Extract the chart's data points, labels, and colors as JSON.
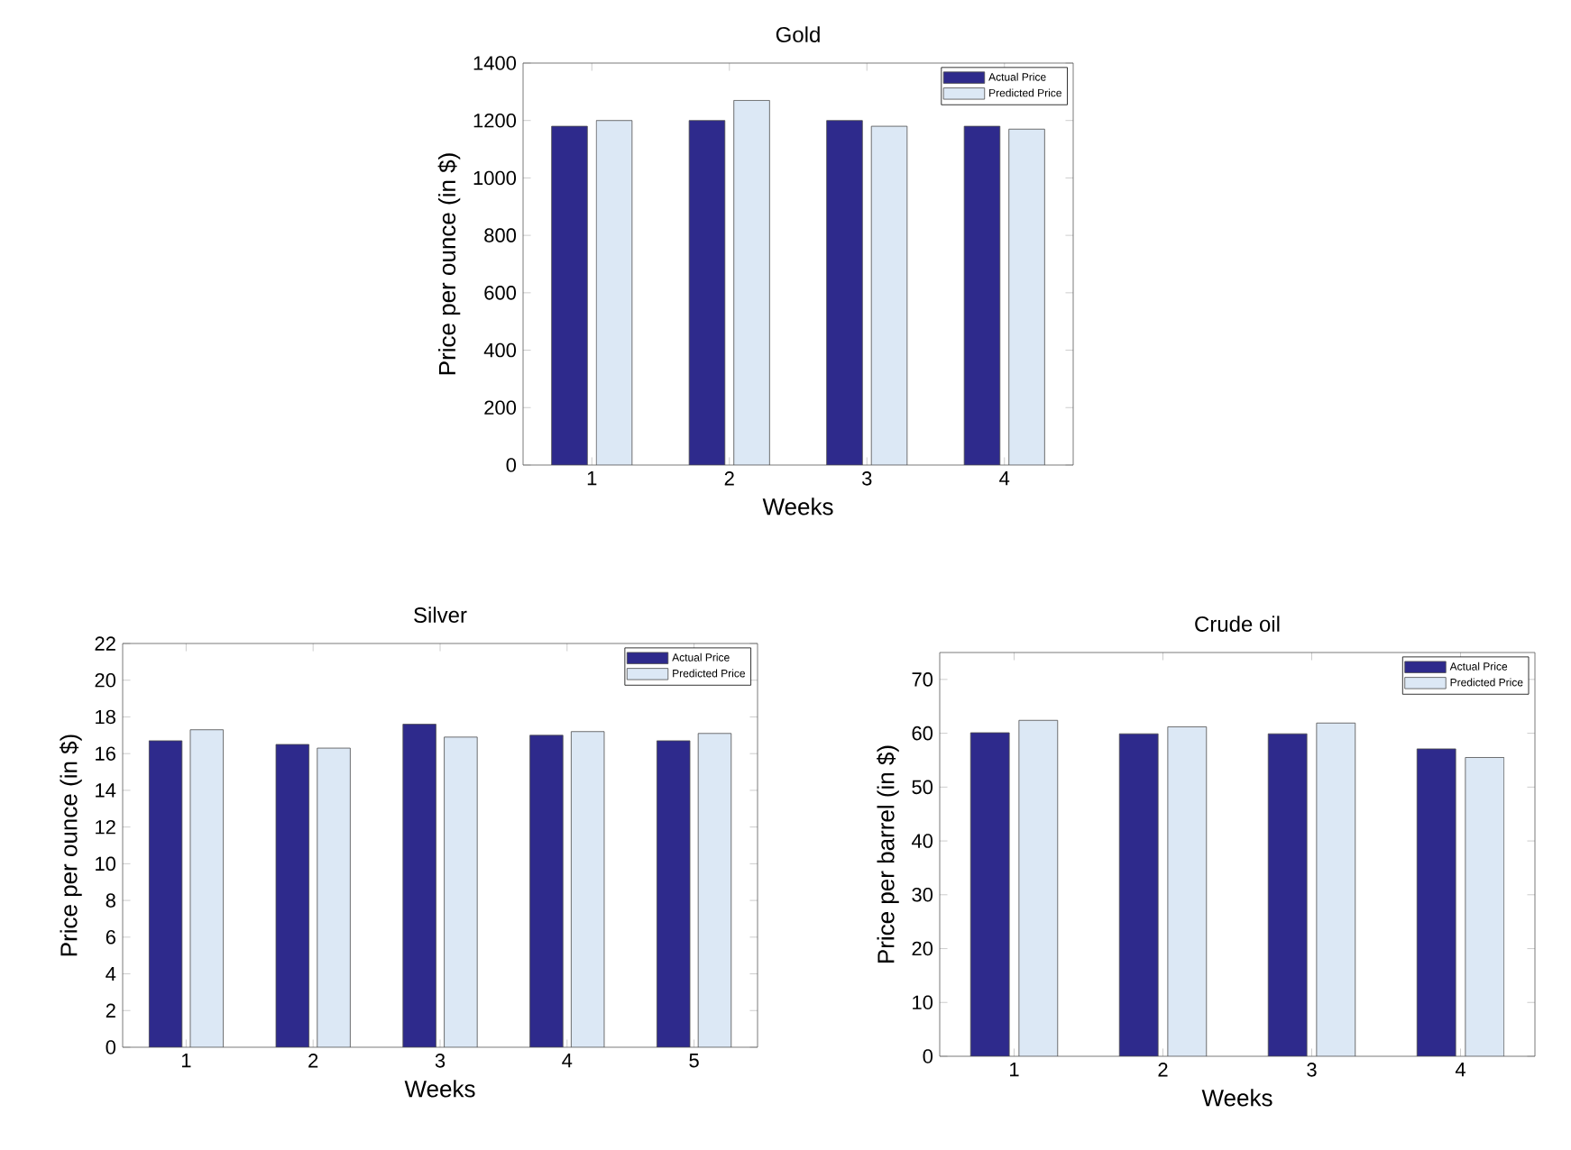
{
  "chart_data": [
    {
      "type": "bar",
      "title": "Gold",
      "xlabel": "Weeks",
      "ylabel": "Price per ounce (in $)",
      "categories": [
        "1",
        "2",
        "3",
        "4"
      ],
      "series": [
        {
          "name": "Actual Price",
          "color": "#2e2a8c",
          "values": [
            1180,
            1200,
            1200,
            1180
          ]
        },
        {
          "name": "Predicted Price",
          "color": "#dce8f5",
          "values": [
            1200,
            1270,
            1180,
            1170
          ]
        }
      ],
      "ylim": [
        0,
        1400
      ],
      "yticks": [
        0,
        200,
        400,
        600,
        800,
        1000,
        1200,
        1400
      ],
      "legend": "top right"
    },
    {
      "type": "bar",
      "title": "Silver",
      "xlabel": "Weeks",
      "ylabel": "Price per ounce (in $)",
      "categories": [
        "1",
        "2",
        "3",
        "4",
        "5"
      ],
      "series": [
        {
          "name": "Actual Price",
          "color": "#2e2a8c",
          "values": [
            16.7,
            16.5,
            17.6,
            17.0,
            16.7
          ]
        },
        {
          "name": "Predicted Price",
          "color": "#dce8f5",
          "values": [
            17.3,
            16.3,
            16.9,
            17.2,
            17.1
          ]
        }
      ],
      "ylim": [
        0,
        22
      ],
      "yticks": [
        0,
        2,
        4,
        6,
        8,
        10,
        12,
        14,
        16,
        18,
        20,
        22
      ],
      "legend": "top right"
    },
    {
      "type": "bar",
      "title": "Crude oil",
      "xlabel": "Weeks",
      "ylabel": "Price per barrel (in $)",
      "categories": [
        "1",
        "2",
        "3",
        "4"
      ],
      "series": [
        {
          "name": "Actual Price",
          "color": "#2e2a8c",
          "values": [
            60.1,
            59.9,
            59.9,
            57.1
          ]
        },
        {
          "name": "Predicted Price",
          "color": "#dce8f5",
          "values": [
            62.4,
            61.2,
            61.9,
            55.5
          ]
        }
      ],
      "ylim": [
        0,
        75
      ],
      "yticks": [
        0,
        10,
        20,
        30,
        40,
        50,
        60,
        70
      ],
      "legend": "top right"
    }
  ]
}
